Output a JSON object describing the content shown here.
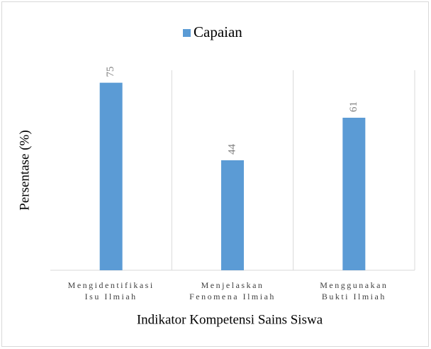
{
  "chart_data": {
    "type": "bar",
    "legend": "Capaian",
    "categories": [
      "Mengidentifikasi\nIsu Ilmiah",
      "Menjelaskan\nFenomena Ilmiah",
      "Menggunakan\nBukti Ilmiah"
    ],
    "values": [
      75,
      44,
      61
    ],
    "color": "#5b9bd5",
    "ylim": [
      0,
      80
    ],
    "y_label": "Persentase (%)",
    "x_label": "Indikator Kompetensi Sains Siswa"
  }
}
